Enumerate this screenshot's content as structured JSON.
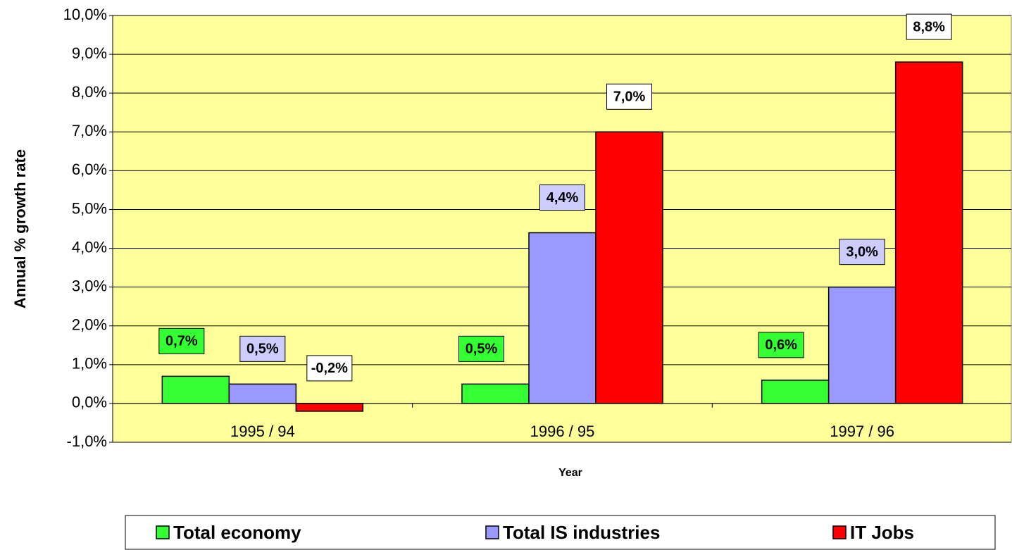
{
  "chart_data": {
    "type": "bar",
    "x_label": "Year",
    "y_label": "Annual % growth rate",
    "categories": [
      "1995 / 94",
      "1996 / 95",
      "1997 / 96"
    ],
    "series": [
      {
        "name": "Total economy",
        "color": "#33ff33",
        "label_color": "#33ff33",
        "values": [
          0.7,
          0.5,
          0.6
        ],
        "value_labels": [
          "0,7%",
          "0,5%",
          "0,6%"
        ]
      },
      {
        "name": "Total IS industries",
        "color": "#9999ff",
        "label_color": "#ccccff",
        "values": [
          0.5,
          4.4,
          3.0
        ],
        "value_labels": [
          "0,5%",
          "4,4%",
          "3,0%"
        ]
      },
      {
        "name": "IT Jobs",
        "color": "#ff0000",
        "label_color": "#ffffff",
        "values": [
          -0.2,
          7.0,
          8.8
        ],
        "value_labels": [
          "-0,2%",
          "7,0%",
          "8,8%"
        ]
      }
    ],
    "ylim": [
      -1,
      10
    ],
    "yticks": [
      {
        "value": -1,
        "label": "-1,0%"
      },
      {
        "value": 0,
        "label": "0,0%"
      },
      {
        "value": 1,
        "label": "1,0%"
      },
      {
        "value": 2,
        "label": "2,0%"
      },
      {
        "value": 3,
        "label": "3,0%"
      },
      {
        "value": 4,
        "label": "4,0%"
      },
      {
        "value": 5,
        "label": "5,0%"
      },
      {
        "value": 6,
        "label": "6,0%"
      },
      {
        "value": 7,
        "label": "7,0%"
      },
      {
        "value": 8,
        "label": "8,0%"
      },
      {
        "value": 9,
        "label": "9,0%"
      },
      {
        "value": 10,
        "label": "10,0%"
      }
    ],
    "grid": true,
    "plot_background": "#ffff99",
    "legend": "bottom"
  }
}
